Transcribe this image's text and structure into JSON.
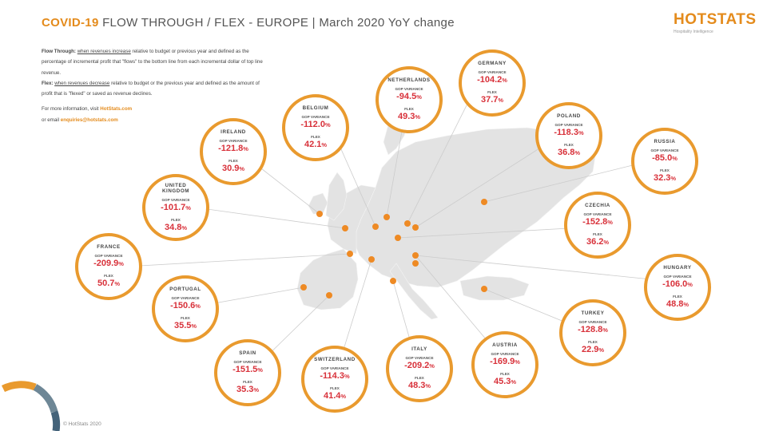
{
  "header": {
    "title_prefix": "COVID-19",
    "title_main": "FLOW THROUGH / FLEX - EUROPE | March 2020 YoY change"
  },
  "logo": {
    "name": "HOTSTATS",
    "tagline": "Hospitality Intelligence"
  },
  "intro": {
    "flow_label": "Flow Through:",
    "flow_link": "when revenues increase",
    "flow_text": "relative to budget or previous year and defined as the percentage of incremental profit that \"flows\" to the bottom line from each incremental dollar of top line revenue.",
    "flex_label": "Flex:",
    "flex_link": "when revenues decrease",
    "flex_text": "relative to budget or the previous year and defined as the amount of profit that is \"flexed\" or saved as revenue declines.",
    "more_info_text": "For more information, visit",
    "more_info_link": "HotStats.com",
    "email_text": "or email",
    "email_link": "enquiries@hotstats.com"
  },
  "labels": {
    "gop": "GOP VARIANCE",
    "flex": "FLEX",
    "pct": "%"
  },
  "countries": [
    {
      "name": "NETHERLANDS",
      "gop": "-94.5",
      "flex": "49.3"
    },
    {
      "name": "GERMANY",
      "gop": "-104.2",
      "flex": "37.7"
    },
    {
      "name": "BELGIUM",
      "gop": "-112.0",
      "flex": "42.1"
    },
    {
      "name": "IRELAND",
      "gop": "-121.8",
      "flex": "30.9"
    },
    {
      "name": "POLAND",
      "gop": "-118.3",
      "flex": "36.8"
    },
    {
      "name": "RUSSIA",
      "gop": "-85.0",
      "flex": "32.3"
    },
    {
      "name": "UNITED KINGDOM",
      "gop": "-101.7",
      "flex": "34.8"
    },
    {
      "name": "CZECHIA",
      "gop": "-152.8",
      "flex": "36.2"
    },
    {
      "name": "FRANCE",
      "gop": "-209.9",
      "flex": "50.7"
    },
    {
      "name": "HUNGARY",
      "gop": "-106.0",
      "flex": "48.8"
    },
    {
      "name": "PORTUGAL",
      "gop": "-150.6",
      "flex": "35.5"
    },
    {
      "name": "TURKEY",
      "gop": "-128.8",
      "flex": "22.9"
    },
    {
      "name": "SPAIN",
      "gop": "-151.5",
      "flex": "35.3"
    },
    {
      "name": "SWITZERLAND",
      "gop": "-114.3",
      "flex": "41.4"
    },
    {
      "name": "ITALY",
      "gop": "-209.2",
      "flex": "48.3"
    },
    {
      "name": "AUSTRIA",
      "gop": "-169.9",
      "flex": "45.3"
    }
  ],
  "footer": {
    "copyright": "© HotStats 2020"
  },
  "colors": {
    "accent": "#e99a2e",
    "value": "#d8313a",
    "map": "#e2e2e2",
    "pin": "#ee8a24"
  }
}
